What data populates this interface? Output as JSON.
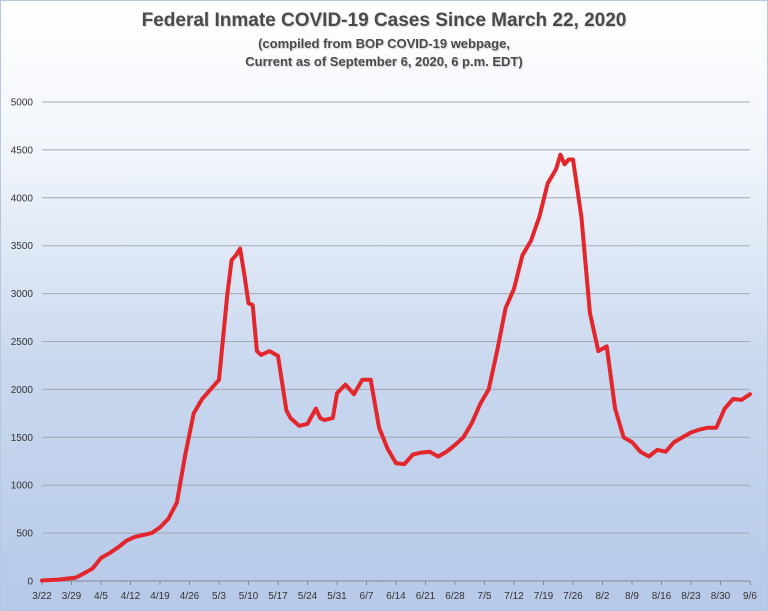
{
  "title": "Federal Inmate COVID-19 Cases Since March 22, 2020",
  "subtitle_line1": "(compiled from BOP COVID-19 webpage,",
  "subtitle_line2": "Current as of September 6, 2020, 6 p.m. EDT)",
  "colors": {
    "line": "#e3252c",
    "grid": "#a2a9b2",
    "axis": "#7d8691",
    "text": "#333333"
  },
  "chart_data": {
    "type": "line",
    "title": "Federal Inmate COVID-19 Cases Since March 22, 2020",
    "subtitle": "(compiled from BOP COVID-19 webpage, Current as of September 6, 2020, 6 p.m. EDT)",
    "xlabel": "",
    "ylabel": "",
    "ylim": [
      0,
      5000
    ],
    "yticks": [
      0,
      500,
      1000,
      1500,
      2000,
      2500,
      3000,
      3500,
      4000,
      4500,
      5000
    ],
    "xlim": [
      "2020-03-22",
      "2020-09-06"
    ],
    "xtick_labels": [
      "3/22",
      "3/29",
      "4/5",
      "4/12",
      "4/19",
      "4/26",
      "5/3",
      "5/10",
      "5/17",
      "5/24",
      "5/31",
      "6/7",
      "6/14",
      "6/21",
      "6/28",
      "7/5",
      "7/12",
      "7/19",
      "7/26",
      "8/2",
      "8/9",
      "8/16",
      "8/23",
      "8/30",
      "9/6"
    ],
    "grid": true,
    "legend": "none",
    "series": [
      {
        "x": [
          "2020-03-22",
          "2020-03-24",
          "2020-03-26",
          "2020-03-28",
          "2020-03-30",
          "2020-04-01",
          "2020-04-03",
          "2020-04-05",
          "2020-04-07",
          "2020-04-09",
          "2020-04-11",
          "2020-04-13",
          "2020-04-15",
          "2020-04-17",
          "2020-04-19",
          "2020-04-21",
          "2020-04-23",
          "2020-04-25",
          "2020-04-27",
          "2020-04-29",
          "2020-05-01",
          "2020-05-03",
          "2020-05-05",
          "2020-05-06",
          "2020-05-07",
          "2020-05-08",
          "2020-05-09",
          "2020-05-10",
          "2020-05-11",
          "2020-05-12",
          "2020-05-13",
          "2020-05-15",
          "2020-05-17",
          "2020-05-19",
          "2020-05-20",
          "2020-05-22",
          "2020-05-24",
          "2020-05-26",
          "2020-05-27",
          "2020-05-28",
          "2020-05-30",
          "2020-05-31",
          "2020-06-02",
          "2020-06-04",
          "2020-06-06",
          "2020-06-08",
          "2020-06-10",
          "2020-06-12",
          "2020-06-14",
          "2020-06-16",
          "2020-06-18",
          "2020-06-20",
          "2020-06-22",
          "2020-06-24",
          "2020-06-26",
          "2020-06-28",
          "2020-06-30",
          "2020-07-02",
          "2020-07-04",
          "2020-07-06",
          "2020-07-08",
          "2020-07-10",
          "2020-07-12",
          "2020-07-14",
          "2020-07-16",
          "2020-07-18",
          "2020-07-20",
          "2020-07-22",
          "2020-07-23",
          "2020-07-24",
          "2020-07-25",
          "2020-07-26",
          "2020-07-28",
          "2020-07-30",
          "2020-08-01",
          "2020-08-03",
          "2020-08-05",
          "2020-08-07",
          "2020-08-09",
          "2020-08-11",
          "2020-08-13",
          "2020-08-15",
          "2020-08-17",
          "2020-08-19",
          "2020-08-21",
          "2020-08-23",
          "2020-08-25",
          "2020-08-27",
          "2020-08-29",
          "2020-08-31",
          "2020-09-02",
          "2020-09-04",
          "2020-09-06"
        ],
        "y": [
          5,
          10,
          15,
          25,
          35,
          80,
          130,
          240,
          290,
          350,
          420,
          460,
          480,
          500,
          560,
          650,
          820,
          1320,
          1750,
          1900,
          2000,
          2100,
          3000,
          3350,
          3400,
          3470,
          3200,
          2900,
          2880,
          2400,
          2360,
          2400,
          2350,
          1780,
          1700,
          1620,
          1640,
          1800,
          1700,
          1680,
          1700,
          1960,
          2050,
          1950,
          2100,
          2100,
          1600,
          1380,
          1230,
          1220,
          1320,
          1340,
          1350,
          1300,
          1350,
          1420,
          1500,
          1650,
          1850,
          2000,
          2400,
          2850,
          3050,
          3400,
          3550,
          3800,
          4150,
          4300,
          4450,
          4350,
          4400,
          4400,
          3800,
          2800,
          2400,
          2450,
          1800,
          1500,
          1450,
          1350,
          1300,
          1370,
          1350,
          1450,
          1500,
          1550,
          1580,
          1600,
          1600,
          1800,
          1900,
          1890,
          1950
        ]
      }
    ]
  }
}
